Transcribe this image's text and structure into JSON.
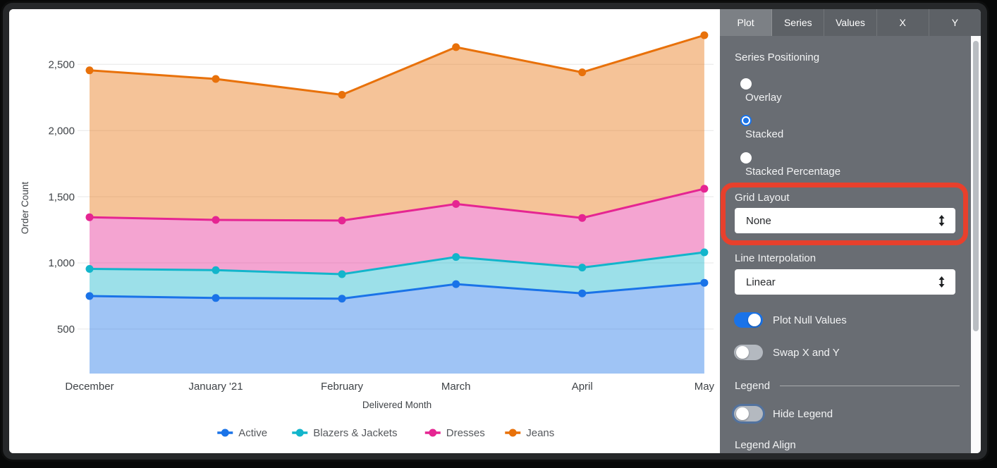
{
  "chart_data": {
    "type": "area",
    "stacked": true,
    "title": "",
    "xlabel": "Delivered Month",
    "ylabel": "Order Count",
    "categories": [
      "December",
      "January '21",
      "February",
      "March",
      "April",
      "May"
    ],
    "x_day_offsets": [
      0,
      31,
      62,
      90,
      121,
      151
    ],
    "yticks": [
      500,
      1000,
      1500,
      2000,
      2500
    ],
    "ylim": [
      160,
      2800
    ],
    "grid": true,
    "legend_position": "bottom",
    "series": [
      {
        "name": "Active",
        "color": "#1a73e8",
        "values": [
          750,
          735,
          730,
          840,
          770,
          850
        ]
      },
      {
        "name": "Blazers & Jackets",
        "color": "#12b5cb",
        "values": [
          205,
          210,
          185,
          205,
          195,
          230
        ]
      },
      {
        "name": "Dresses",
        "color": "#e52592",
        "values": [
          390,
          380,
          405,
          400,
          375,
          480
        ]
      },
      {
        "name": "Jeans",
        "color": "#e8710a",
        "values": [
          1110,
          1065,
          950,
          1185,
          1100,
          1160
        ]
      }
    ],
    "stacked_totals": {
      "Active": [
        750,
        735,
        730,
        840,
        770,
        850
      ],
      "Blazers & Jackets": [
        955,
        945,
        915,
        1045,
        965,
        1080
      ],
      "Dresses": [
        1345,
        1325,
        1320,
        1445,
        1340,
        1560
      ],
      "Jeans": [
        2455,
        2390,
        2270,
        2630,
        2440,
        2720
      ]
    }
  },
  "panel": {
    "tabs": [
      {
        "label": "Plot",
        "active": true
      },
      {
        "label": "Series",
        "active": false
      },
      {
        "label": "Values",
        "active": false
      },
      {
        "label": "X",
        "active": false
      },
      {
        "label": "Y",
        "active": false
      }
    ],
    "series_positioning": {
      "label": "Series Positioning",
      "options": [
        {
          "label": "Overlay",
          "selected": false
        },
        {
          "label": "Stacked",
          "selected": true
        },
        {
          "label": "Stacked Percentage",
          "selected": false
        }
      ]
    },
    "grid_layout": {
      "label": "Grid Layout",
      "value": "None",
      "annotated": true
    },
    "line_interpolation": {
      "label": "Line Interpolation",
      "value": "Linear"
    },
    "toggles": [
      {
        "label": "Plot Null Values",
        "on": true
      },
      {
        "label": "Swap X and Y",
        "on": false
      }
    ],
    "legend_section": {
      "header": "Legend",
      "hide_legend": {
        "label": "Hide Legend",
        "on": false
      },
      "legend_align_label": "Legend Align"
    },
    "colors": {
      "accent": "#1a73e8",
      "annotation": "#e8402c",
      "panel_bg": "#696d73",
      "tabbar_bg": "#5d6166",
      "active_tab_bg": "#7c8085",
      "toggle_off": "#b4b9c0"
    }
  }
}
